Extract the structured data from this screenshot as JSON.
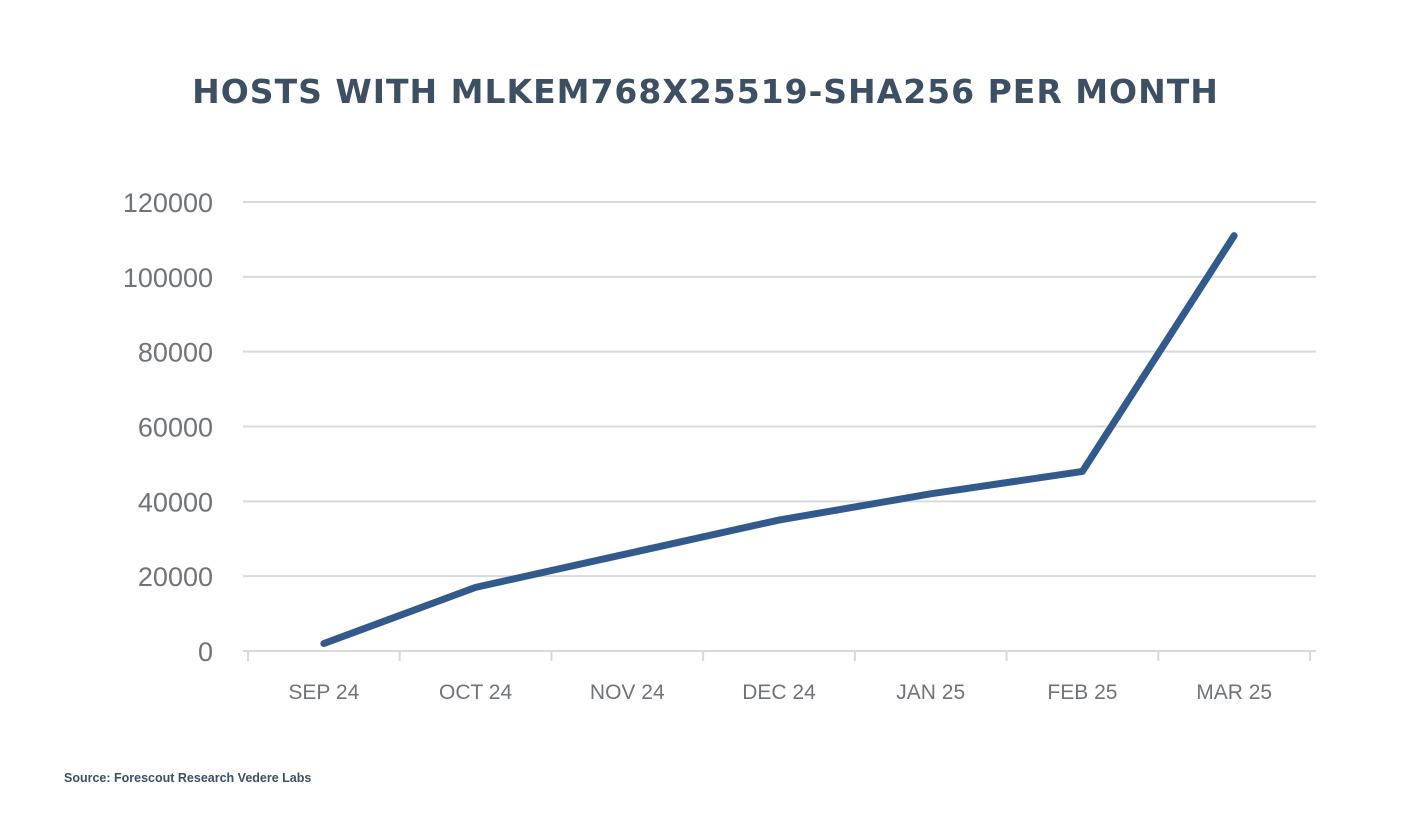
{
  "chart_data": {
    "type": "line",
    "title": "HOSTS WITH MLKEM768X25519-SHA256 PER MONTH",
    "xlabel": "",
    "ylabel": "",
    "categories": [
      "SEP 24",
      "OCT 24",
      "NOV 24",
      "DEC 24",
      "JAN 25",
      "FEB 25",
      "MAR 25"
    ],
    "series": [
      {
        "name": "Hosts",
        "values": [
          2000,
          17000,
          26000,
          35000,
          42000,
          48000,
          111000
        ]
      }
    ],
    "ylim": [
      0,
      120000
    ],
    "yticks": [
      0,
      20000,
      40000,
      60000,
      80000,
      100000,
      120000
    ],
    "grid": true,
    "line_color": "#325a8c",
    "grid_color": "#d9d9d9",
    "source": "Source: Forescout Research Vedere Labs"
  }
}
